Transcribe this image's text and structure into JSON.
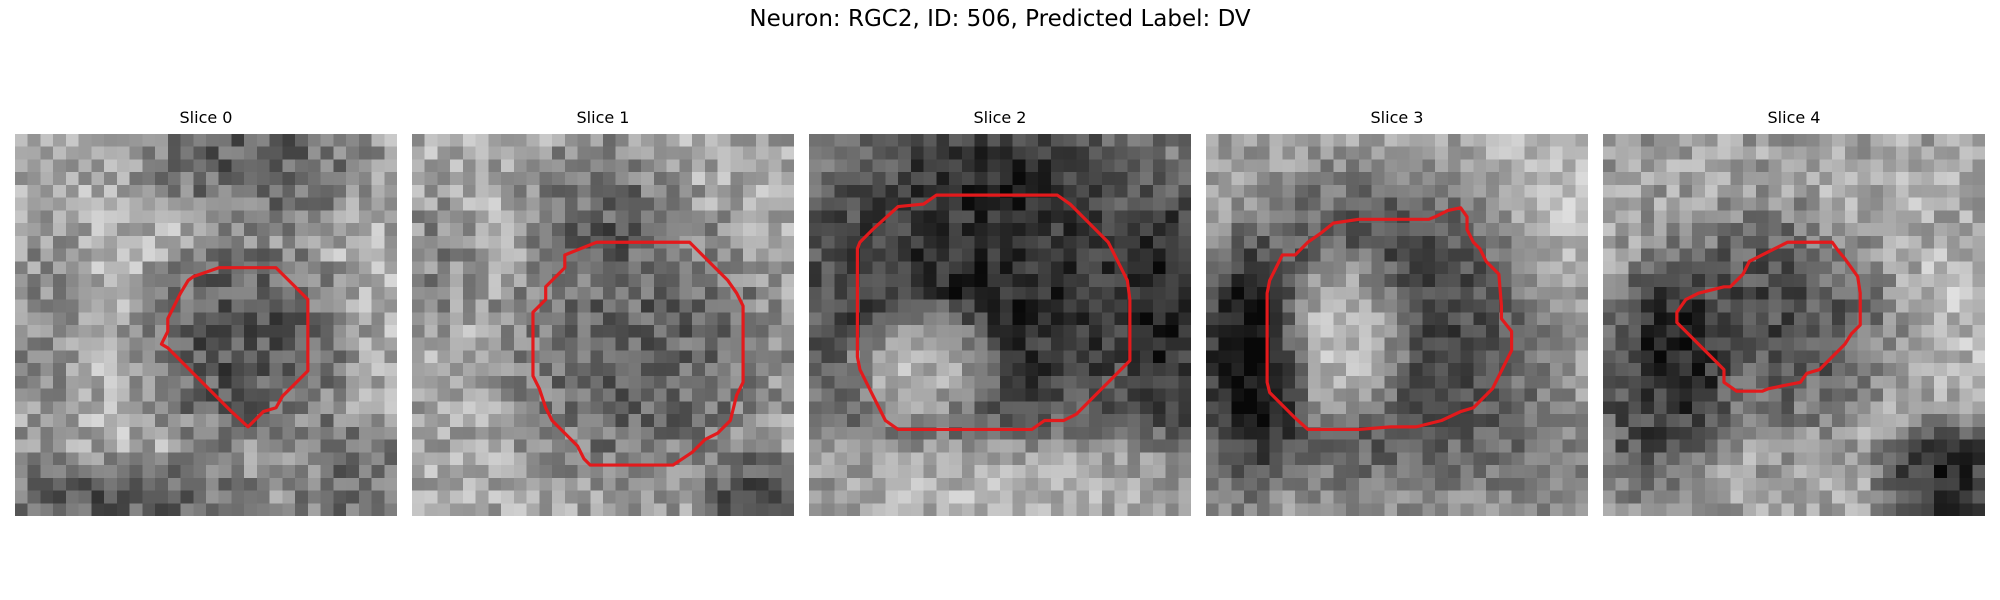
{
  "figure": {
    "title": "Neuron: RGC2, ID: 506, Predicted Label: DV",
    "panels": [
      {
        "title": "Slice 0"
      },
      {
        "title": "Slice 1"
      },
      {
        "title": "Slice 2"
      },
      {
        "title": "Slice 3"
      },
      {
        "title": "Slice 4"
      }
    ],
    "contour_color": "#e31a1c"
  }
}
